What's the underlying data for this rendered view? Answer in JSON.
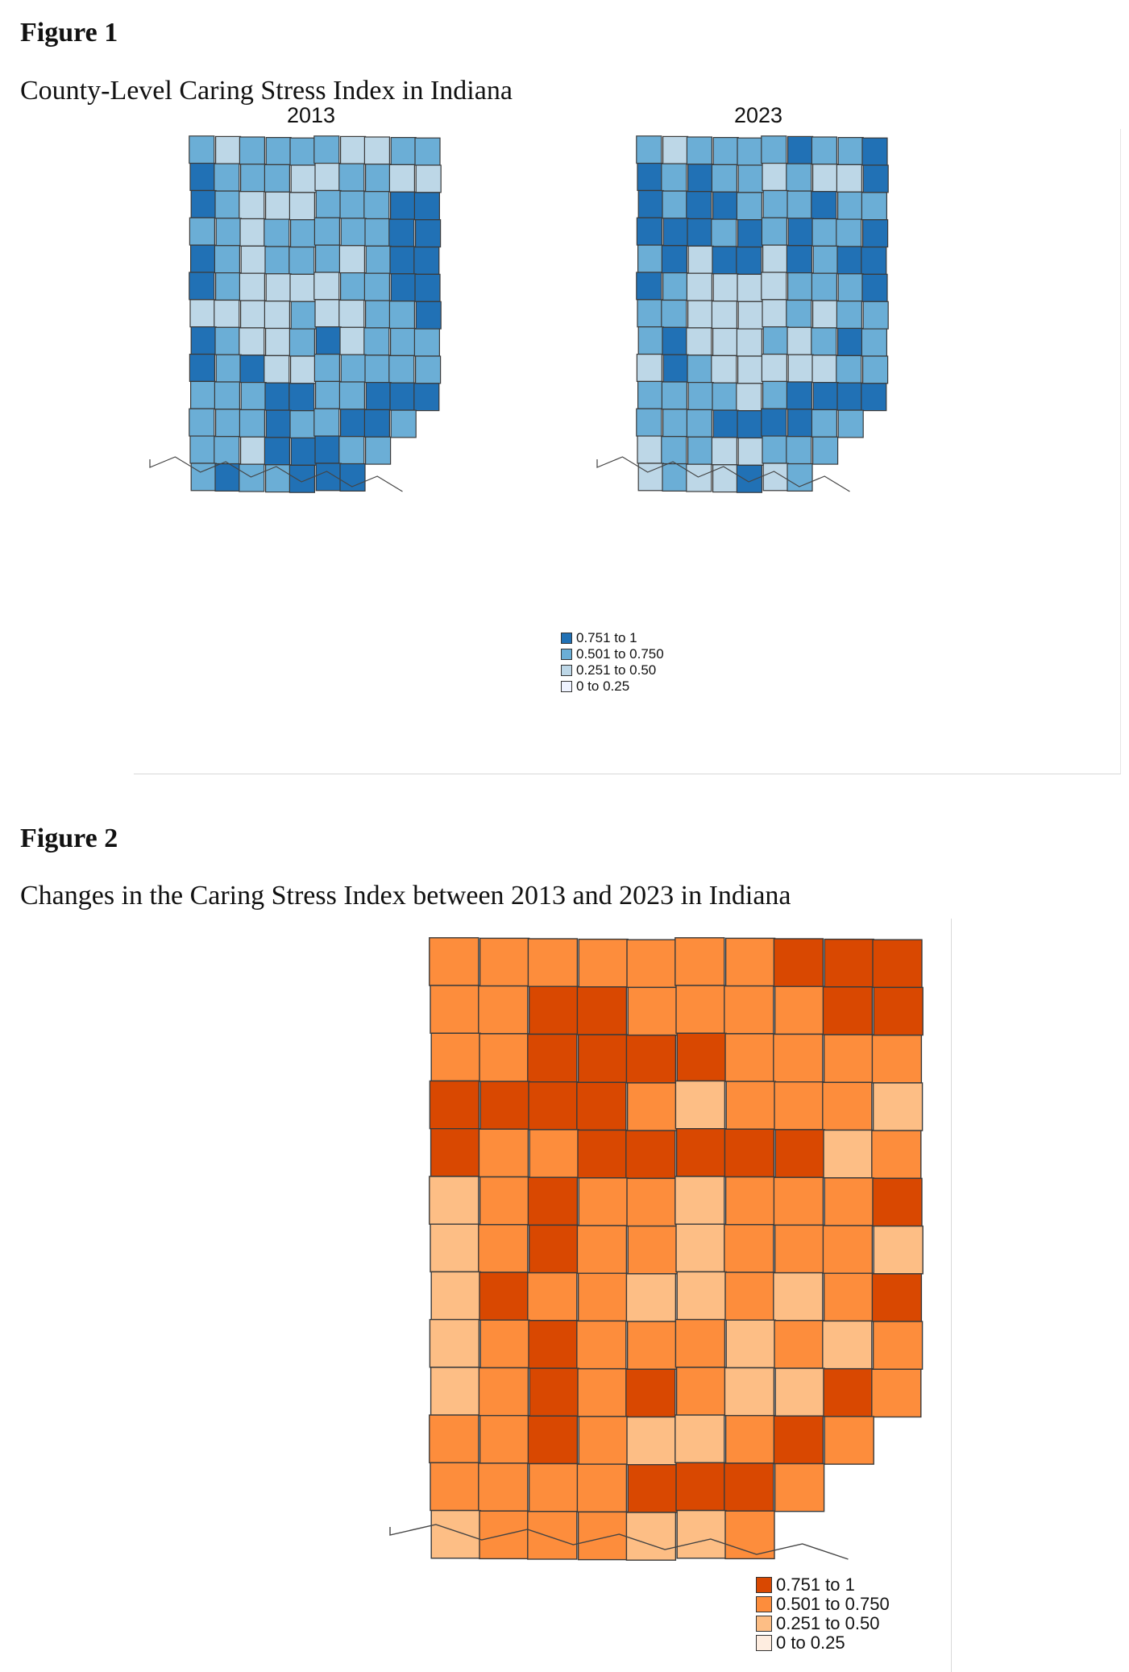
{
  "figure1": {
    "label": "Figure 1",
    "caption": "County-Level Caring Stress Index in Indiana",
    "maps": [
      {
        "title": "2013"
      },
      {
        "title": "2023"
      }
    ],
    "legend": [
      {
        "label": "0.751 to 1",
        "color": "#2171b5"
      },
      {
        "label": "0.501 to 0.750",
        "color": "#6baed6"
      },
      {
        "label": "0.251 to 0.50",
        "color": "#bdd7e7"
      },
      {
        "label": "0 to 0.25",
        "color": "#eff3ff"
      }
    ]
  },
  "figure2": {
    "label": "Figure 2",
    "caption": "Changes in the Caring Stress Index between 2013 and 2023 in Indiana",
    "legend": [
      {
        "label": "0.751 to 1",
        "color": "#d94801"
      },
      {
        "label": "0.501 to 0.750",
        "color": "#fd8d3c"
      },
      {
        "label": "0.251 to 0.50",
        "color": "#fdbe85"
      },
      {
        "label": "0 to 0.25",
        "color": "#feede0"
      }
    ]
  },
  "map_data": {
    "grid_cols": 10,
    "grid_rows": 13,
    "classes_2013": [
      [
        2,
        1,
        2,
        2,
        2,
        2,
        1,
        1,
        2,
        2
      ],
      [
        3,
        2,
        2,
        2,
        1,
        1,
        2,
        2,
        1,
        1
      ],
      [
        3,
        2,
        1,
        1,
        1,
        2,
        2,
        2,
        3,
        3
      ],
      [
        2,
        2,
        1,
        2,
        2,
        2,
        2,
        2,
        3,
        3
      ],
      [
        3,
        2,
        1,
        2,
        2,
        2,
        1,
        2,
        3,
        3
      ],
      [
        3,
        2,
        1,
        1,
        1,
        1,
        2,
        2,
        3,
        3
      ],
      [
        1,
        1,
        1,
        1,
        2,
        1,
        1,
        2,
        2,
        3
      ],
      [
        3,
        2,
        1,
        1,
        2,
        3,
        1,
        2,
        2,
        2
      ],
      [
        3,
        2,
        3,
        1,
        1,
        2,
        2,
        2,
        2,
        2
      ],
      [
        2,
        2,
        2,
        3,
        3,
        2,
        2,
        3,
        3,
        3
      ],
      [
        2,
        2,
        2,
        3,
        2,
        2,
        3,
        3,
        2,
        2
      ],
      [
        2,
        2,
        1,
        3,
        3,
        3,
        2,
        2,
        2,
        2
      ],
      [
        2,
        3,
        2,
        2,
        3,
        3,
        3,
        2,
        2,
        2
      ]
    ],
    "classes_2023": [
      [
        2,
        1,
        2,
        2,
        2,
        2,
        3,
        2,
        2,
        3
      ],
      [
        3,
        2,
        3,
        2,
        2,
        1,
        2,
        1,
        1,
        3
      ],
      [
        3,
        2,
        3,
        3,
        2,
        2,
        2,
        3,
        2,
        2
      ],
      [
        3,
        3,
        3,
        2,
        3,
        2,
        3,
        2,
        2,
        3
      ],
      [
        2,
        3,
        1,
        3,
        3,
        1,
        3,
        2,
        3,
        3
      ],
      [
        3,
        2,
        1,
        1,
        1,
        1,
        2,
        2,
        2,
        3
      ],
      [
        2,
        2,
        1,
        1,
        1,
        1,
        2,
        1,
        2,
        2
      ],
      [
        2,
        3,
        1,
        1,
        1,
        2,
        1,
        2,
        3,
        2
      ],
      [
        1,
        3,
        2,
        1,
        1,
        1,
        1,
        1,
        2,
        2
      ],
      [
        2,
        2,
        2,
        2,
        1,
        2,
        3,
        3,
        3,
        3
      ],
      [
        2,
        2,
        2,
        3,
        3,
        3,
        3,
        2,
        2,
        2
      ],
      [
        1,
        2,
        2,
        1,
        1,
        2,
        2,
        2,
        2,
        2
      ],
      [
        1,
        2,
        1,
        1,
        3,
        1,
        2,
        2,
        2,
        2
      ]
    ],
    "classes_change": [
      [
        2,
        2,
        2,
        2,
        2,
        2,
        2,
        3,
        3,
        3
      ],
      [
        2,
        2,
        3,
        3,
        2,
        2,
        2,
        2,
        3,
        3
      ],
      [
        2,
        2,
        3,
        3,
        3,
        3,
        2,
        2,
        2,
        2
      ],
      [
        3,
        3,
        3,
        3,
        2,
        1,
        2,
        2,
        2,
        1
      ],
      [
        3,
        2,
        2,
        3,
        3,
        3,
        3,
        3,
        1,
        2
      ],
      [
        1,
        2,
        3,
        2,
        2,
        1,
        2,
        2,
        2,
        3
      ],
      [
        1,
        2,
        3,
        2,
        2,
        1,
        2,
        2,
        2,
        1
      ],
      [
        1,
        3,
        2,
        2,
        1,
        1,
        2,
        1,
        2,
        3
      ],
      [
        1,
        2,
        3,
        2,
        2,
        2,
        1,
        2,
        1,
        2
      ],
      [
        1,
        2,
        3,
        2,
        3,
        2,
        1,
        1,
        3,
        2
      ],
      [
        2,
        2,
        3,
        2,
        1,
        1,
        2,
        3,
        2,
        3
      ],
      [
        2,
        2,
        2,
        2,
        3,
        3,
        3,
        2,
        1,
        2
      ],
      [
        1,
        2,
        2,
        2,
        1,
        1,
        2,
        1,
        1,
        1
      ]
    ]
  }
}
